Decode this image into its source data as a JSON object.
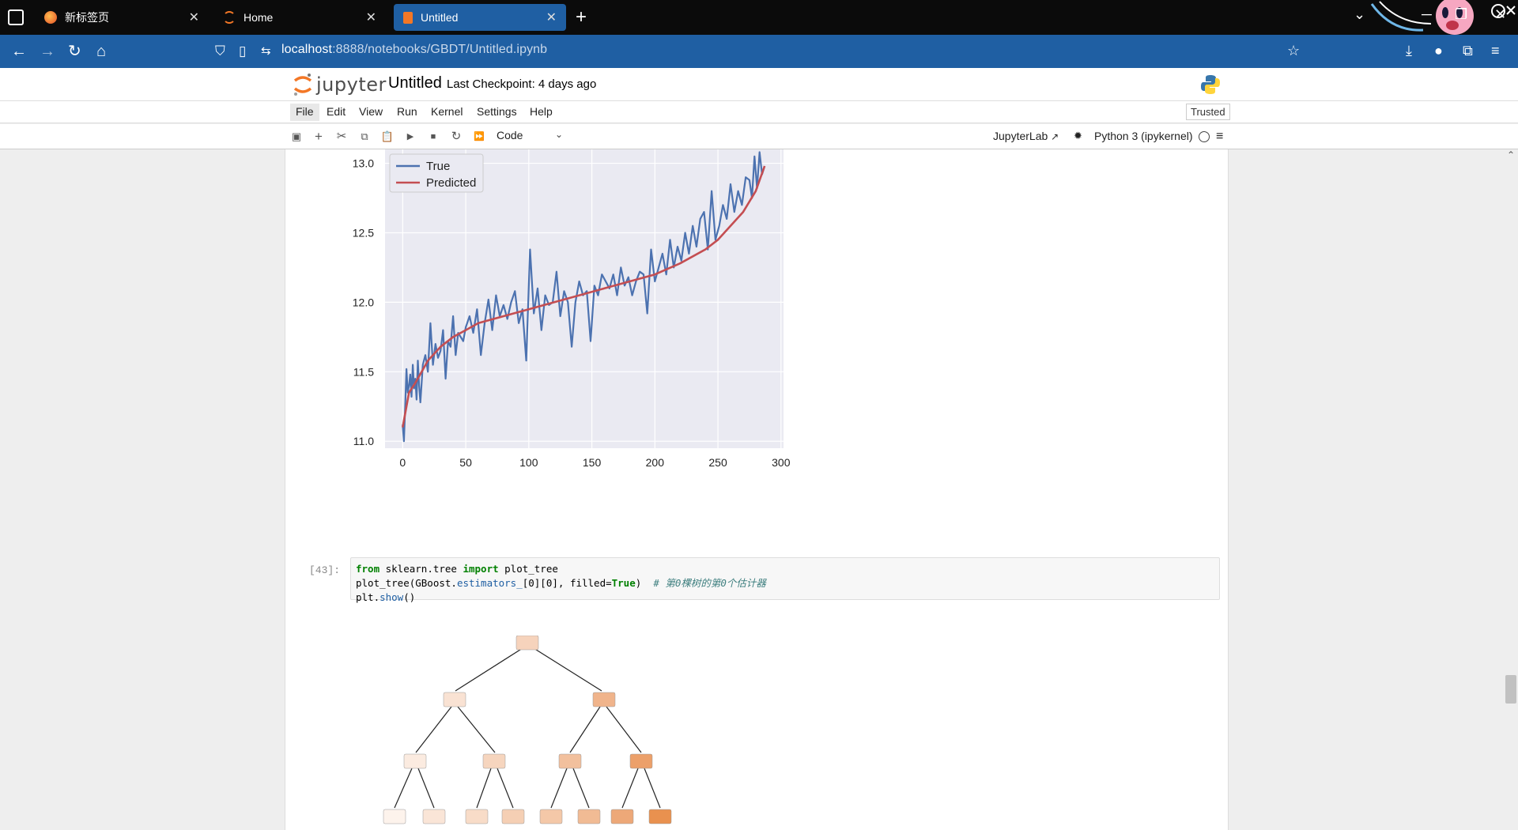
{
  "browser": {
    "tabs": [
      {
        "label": "新标签页",
        "icon": "firefox-icon"
      },
      {
        "label": "Home",
        "icon": "jupyter-icon"
      },
      {
        "label": "Untitled",
        "icon": "notebook-icon",
        "active": true
      }
    ],
    "new_tab_symbol": "+",
    "url_host": "localhost",
    "url_path": ":8888/notebooks/GBDT/Untitled.ipynb"
  },
  "jupyter": {
    "logo_text": "jupyter",
    "notebook_title": "Untitled",
    "checkpoint": "Last Checkpoint: 4 days ago",
    "menu": [
      "File",
      "Edit",
      "View",
      "Run",
      "Kernel",
      "Settings",
      "Help"
    ],
    "trusted": "Trusted",
    "cell_type": "Code",
    "jupyterlab_link": "JupyterLab",
    "kernel_name": "Python 3 (ipykernel)"
  },
  "cells": {
    "code_prompt": "[43]:",
    "code_lines": {
      "l1_kw1": "from",
      "l1_mid": " sklearn.tree ",
      "l1_kw2": "import",
      "l1_end": " plot_tree",
      "l2_a": "plot_tree(GBoost.",
      "l2_attr": "estimators_",
      "l2_b": "[0][0], filled=",
      "l2_kw": "True",
      "l2_c": ")  ",
      "l2_cmt": "# 第0棵树的第0个估计器",
      "l3_a": "plt.",
      "l3_attr": "show",
      "l3_b": "()"
    }
  },
  "chart_data": {
    "type": "line",
    "title": "",
    "xlabel": "",
    "ylabel": "",
    "xlim": [
      -14,
      302
    ],
    "ylim": [
      10.95,
      13.1
    ],
    "xticks": [
      0,
      50,
      100,
      150,
      200,
      250,
      300
    ],
    "yticks": [
      11.0,
      11.5,
      12.0,
      12.5,
      13.0
    ],
    "grid": true,
    "legend_position": "top-left",
    "series": [
      {
        "name": "True",
        "color": "#4c72b0",
        "x": [
          0,
          1,
          2,
          3,
          4,
          5,
          6,
          7,
          8,
          9,
          10,
          11,
          12,
          13,
          14,
          16,
          18,
          20,
          22,
          24,
          26,
          28,
          30,
          32,
          34,
          36,
          38,
          40,
          42,
          44,
          46,
          48,
          50,
          53,
          56,
          59,
          62,
          65,
          68,
          71,
          74,
          77,
          80,
          83,
          86,
          89,
          92,
          95,
          98,
          101,
          104,
          107,
          110,
          113,
          116,
          119,
          122,
          125,
          128,
          131,
          134,
          137,
          140,
          143,
          146,
          149,
          152,
          155,
          158,
          161,
          164,
          167,
          170,
          173,
          176,
          179,
          182,
          185,
          188,
          191,
          194,
          197,
          200,
          203,
          206,
          209,
          212,
          215,
          218,
          221,
          224,
          227,
          230,
          233,
          236,
          239,
          242,
          245,
          248,
          251,
          254,
          257,
          260,
          263,
          266,
          269,
          272,
          275,
          277,
          279,
          281,
          283,
          285,
          287
        ],
        "y": [
          11.12,
          11.0,
          11.25,
          11.52,
          11.35,
          11.4,
          11.48,
          11.32,
          11.55,
          11.38,
          11.45,
          11.3,
          11.58,
          11.4,
          11.28,
          11.55,
          11.62,
          11.5,
          11.85,
          11.55,
          11.7,
          11.6,
          11.65,
          11.8,
          11.45,
          11.72,
          11.68,
          11.9,
          11.62,
          11.78,
          11.75,
          11.72,
          11.82,
          11.9,
          11.78,
          11.95,
          11.62,
          11.85,
          12.02,
          11.8,
          12.05,
          11.9,
          11.98,
          11.88,
          12.0,
          12.08,
          11.85,
          11.95,
          11.58,
          12.38,
          11.92,
          12.1,
          11.8,
          12.05,
          11.98,
          12.0,
          12.22,
          11.9,
          12.08,
          12.0,
          11.68,
          12.0,
          12.15,
          12.05,
          12.08,
          11.72,
          12.12,
          12.05,
          12.2,
          12.15,
          12.1,
          12.2,
          12.05,
          12.25,
          12.12,
          12.18,
          12.05,
          12.15,
          12.22,
          12.2,
          11.92,
          12.38,
          12.15,
          12.25,
          12.35,
          12.2,
          12.45,
          12.25,
          12.4,
          12.3,
          12.5,
          12.35,
          12.55,
          12.4,
          12.6,
          12.65,
          12.38,
          12.8,
          12.45,
          12.55,
          12.7,
          12.6,
          12.85,
          12.65,
          12.8,
          12.7,
          12.9,
          12.88,
          12.75,
          13.05,
          12.82,
          13.08,
          12.92,
          12.98
        ]
      },
      {
        "name": "Predicted",
        "color": "#c44e52",
        "x": [
          0,
          5,
          10,
          15,
          20,
          30,
          40,
          50,
          60,
          80,
          100,
          120,
          140,
          160,
          180,
          200,
          220,
          240,
          250,
          260,
          270,
          280,
          287
        ],
        "y": [
          11.1,
          11.35,
          11.42,
          11.5,
          11.58,
          11.68,
          11.75,
          11.8,
          11.85,
          11.9,
          11.95,
          12.0,
          12.05,
          12.1,
          12.15,
          12.2,
          12.28,
          12.38,
          12.45,
          12.55,
          12.65,
          12.8,
          12.98
        ]
      }
    ]
  }
}
